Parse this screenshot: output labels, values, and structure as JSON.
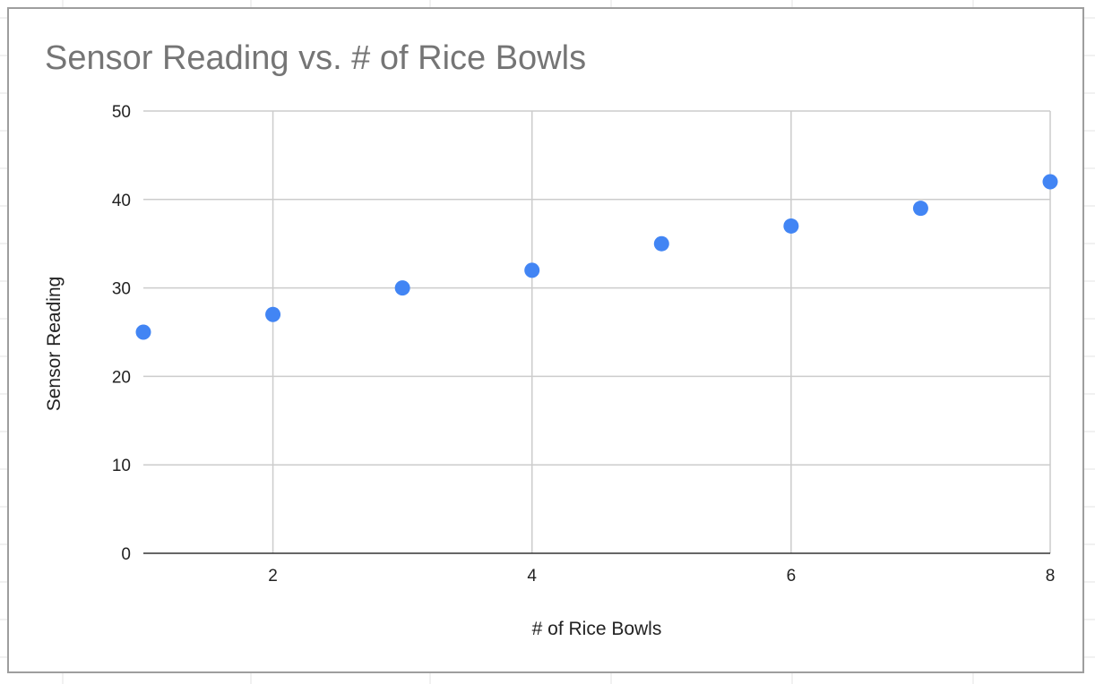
{
  "chart_data": {
    "type": "scatter",
    "title": "Sensor Reading vs. # of Rice Bowls",
    "xlabel": "# of Rice Bowls",
    "ylabel": "Sensor Reading",
    "xlim": [
      1,
      8
    ],
    "ylim": [
      0,
      50
    ],
    "xticks": [
      "2",
      "4",
      "6",
      "8"
    ],
    "yticks": [
      "0",
      "10",
      "20",
      "30",
      "40",
      "50"
    ],
    "grid": true,
    "legend": "none",
    "series": [
      {
        "color": "#4285f4",
        "x": [
          1,
          2,
          3,
          4,
          5,
          6,
          7,
          8
        ],
        "y": [
          25,
          27,
          30,
          32,
          35,
          37,
          39,
          42
        ]
      }
    ]
  }
}
